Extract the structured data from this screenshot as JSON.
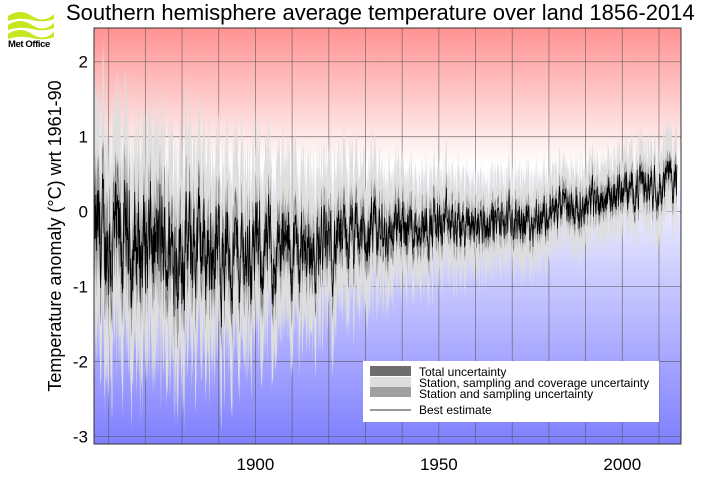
{
  "header": {
    "title": "Southern hemisphere average temperature over land 1856-2014",
    "logo_text": "Met Office"
  },
  "chart_data": {
    "type": "line",
    "title": "Southern hemisphere average temperature over land 1856-2014",
    "xlabel": "",
    "ylabel": "Temperature anomaly (°C) wrt 1961-90",
    "xlim": [
      1856,
      2016
    ],
    "ylim": [
      -3.1,
      2.45
    ],
    "x_ticks": [
      1900,
      1950,
      2000
    ],
    "y_ticks": [
      2,
      1,
      0,
      -1,
      -2,
      -3
    ],
    "grid": true,
    "x_grid_step_years": 10,
    "background": "gradient red (warm, top) to white (0) to blue (cool, bottom)",
    "colors": {
      "warm": "#ff9292",
      "cool": "#7f7fff",
      "total": "#6e6e6e",
      "coverage": "#dedede",
      "station": "#a0a0a0",
      "best": "#000000"
    },
    "legend": {
      "placement": "bottom-right",
      "entries": [
        {
          "label": "Total uncertainty",
          "swatch": "#6e6e6e"
        },
        {
          "label": "Station, sampling and coverage uncertainty",
          "swatch": "#dedede"
        },
        {
          "label": "Station and sampling uncertainty",
          "swatch": "#a0a0a0"
        },
        {
          "label": "Best estimate",
          "swatch": "line"
        }
      ]
    },
    "x": [
      1856,
      1865,
      1875,
      1885,
      1895,
      1905,
      1915,
      1925,
      1935,
      1945,
      1955,
      1965,
      1975,
      1985,
      1995,
      2005,
      2014
    ],
    "series": [
      {
        "name": "Best estimate",
        "values": [
          -0.4,
          -0.45,
          -0.5,
          -0.5,
          -0.55,
          -0.55,
          -0.5,
          -0.4,
          -0.3,
          -0.15,
          -0.2,
          -0.15,
          -0.1,
          0.05,
          0.2,
          0.35,
          0.45
        ]
      },
      {
        "name": "Station, sampling and coverage uncertainty",
        "values": [
          1.4,
          1.3,
          1.3,
          1.2,
          1.1,
          1.0,
          0.9,
          0.8,
          0.7,
          0.6,
          0.55,
          0.5,
          0.5,
          0.45,
          0.45,
          0.45,
          0.5
        ]
      },
      {
        "name": "Station and sampling uncertainty",
        "values": [
          0.35,
          0.3,
          0.3,
          0.28,
          0.25,
          0.22,
          0.2,
          0.18,
          0.16,
          0.14,
          0.12,
          0.1,
          0.1,
          0.1,
          0.1,
          0.1,
          0.1
        ]
      }
    ]
  }
}
